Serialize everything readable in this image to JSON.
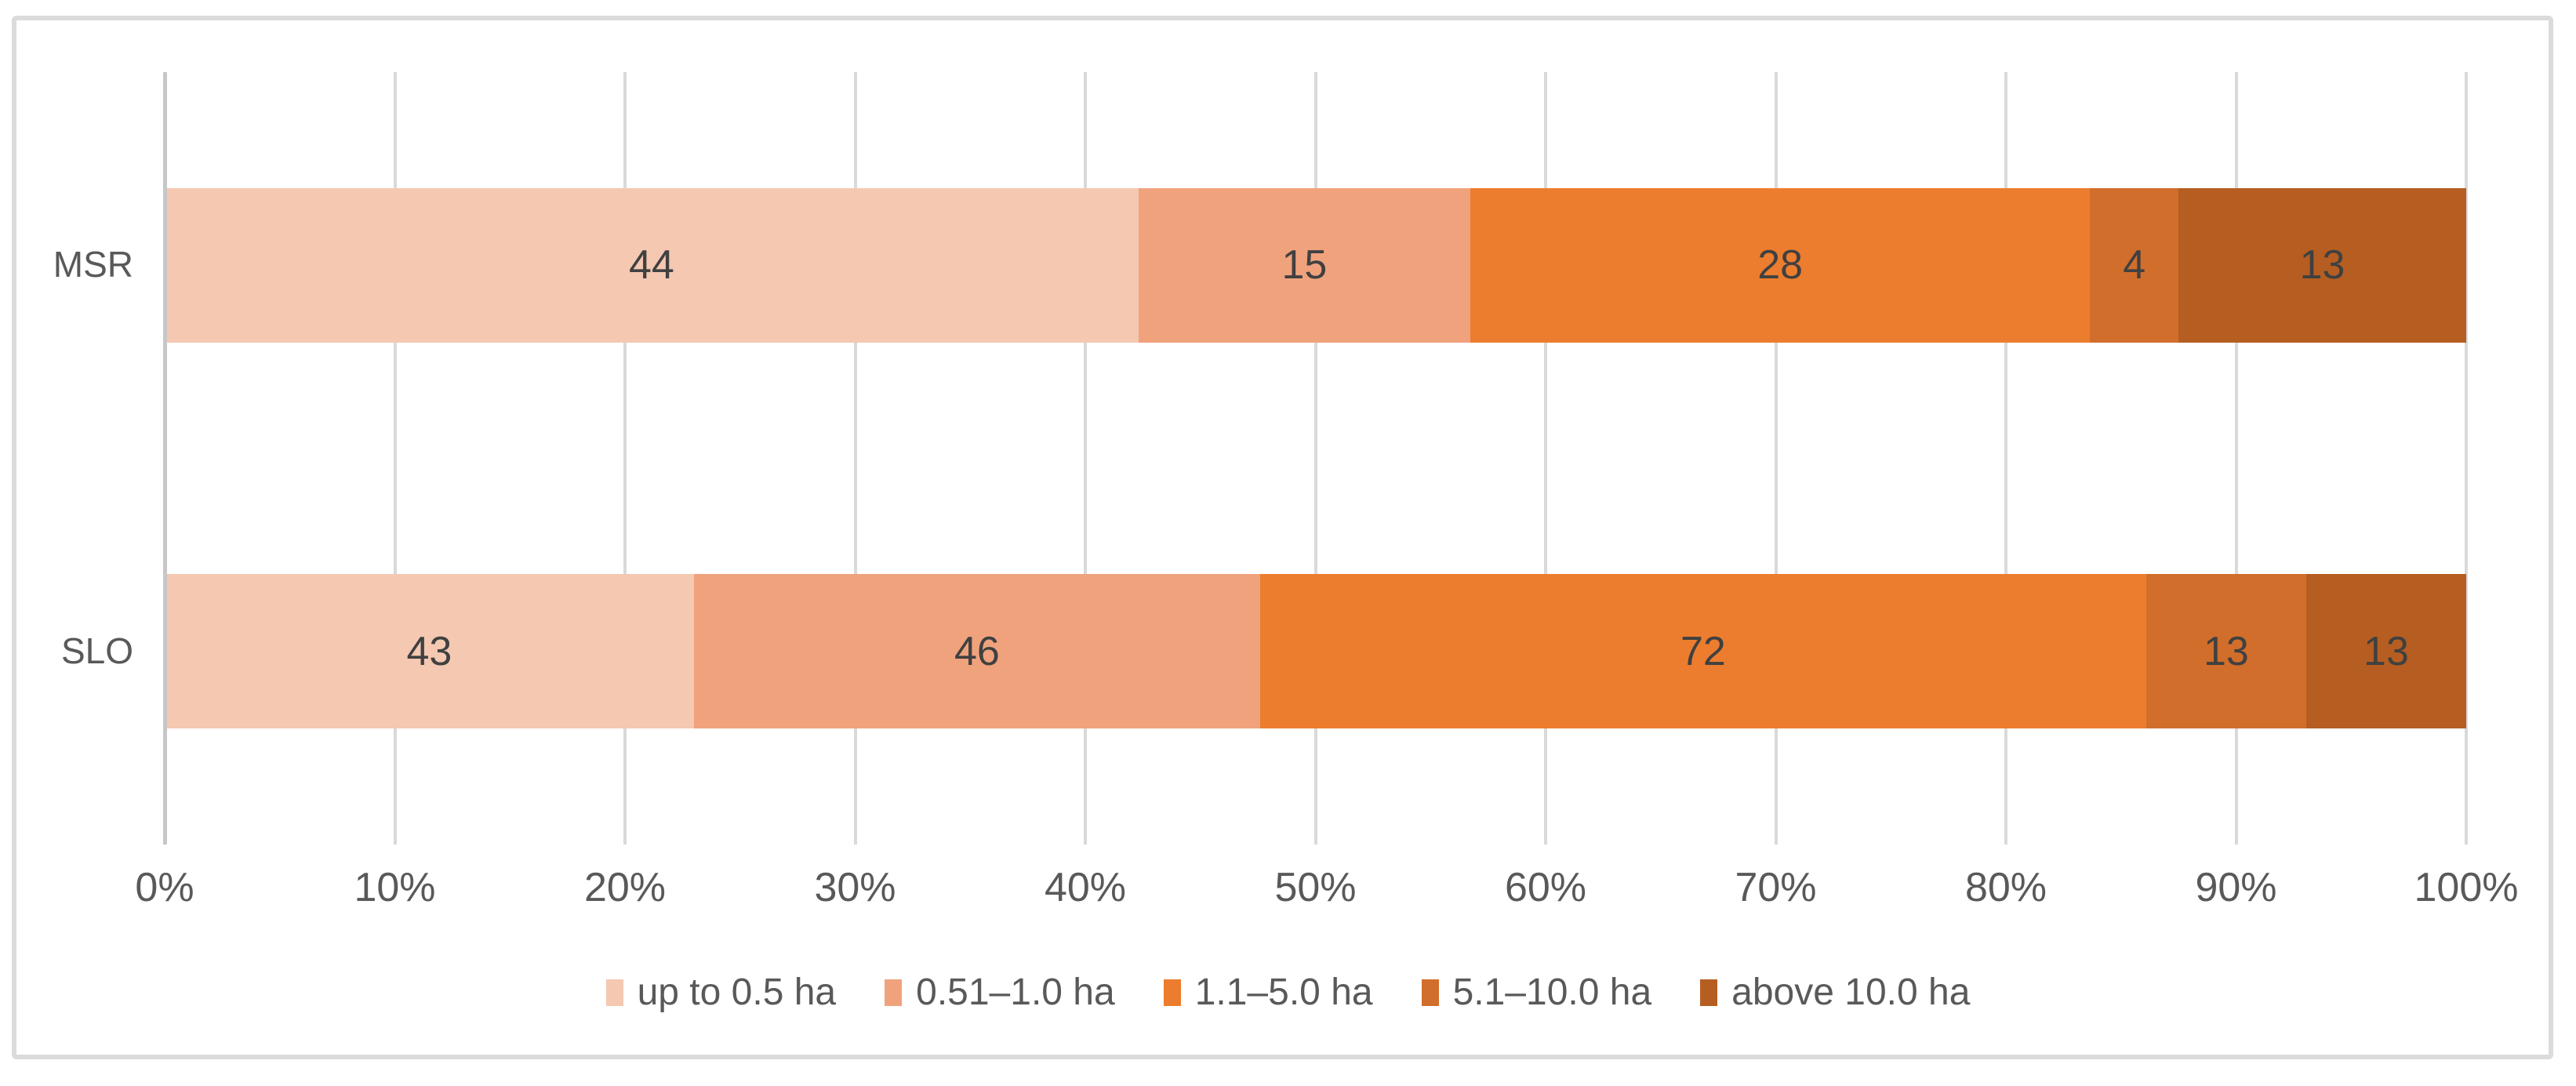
{
  "chart_data": {
    "type": "bar",
    "variant": "stacked-100-horizontal",
    "title": "",
    "xlabel": "",
    "ylabel": "",
    "categories": [
      "MSR",
      "SLO"
    ],
    "series": [
      {
        "name": "up to 0.5 ha",
        "color": "#F4C8B1",
        "values": [
          44,
          43
        ]
      },
      {
        "name": "0.51–1.0 ha",
        "color": "#F0A27D",
        "values": [
          15,
          46
        ]
      },
      {
        "name": "1.1–5.0 ha",
        "color": "#EC7D2E",
        "values": [
          28,
          72
        ]
      },
      {
        "name": "5.1–10.0 ha",
        "color": "#D16E2B",
        "values": [
          4,
          13
        ]
      },
      {
        "name": "above 10.0 ha",
        "color": "#B65E21",
        "values": [
          13,
          13
        ]
      }
    ],
    "x_axis": {
      "min": 0,
      "max": 100,
      "tick_labels": [
        "0%",
        "10%",
        "20%",
        "30%",
        "40%",
        "50%",
        "60%",
        "70%",
        "80%",
        "90%",
        "100%"
      ],
      "grid": true
    },
    "legend_position": "bottom",
    "colors": {
      "gridline": "#D9D9D9",
      "axis_line": "#C7C7C7",
      "frame_border": "#DBDBDB",
      "data_label_text": "#404040",
      "axis_text": "#595959"
    }
  }
}
